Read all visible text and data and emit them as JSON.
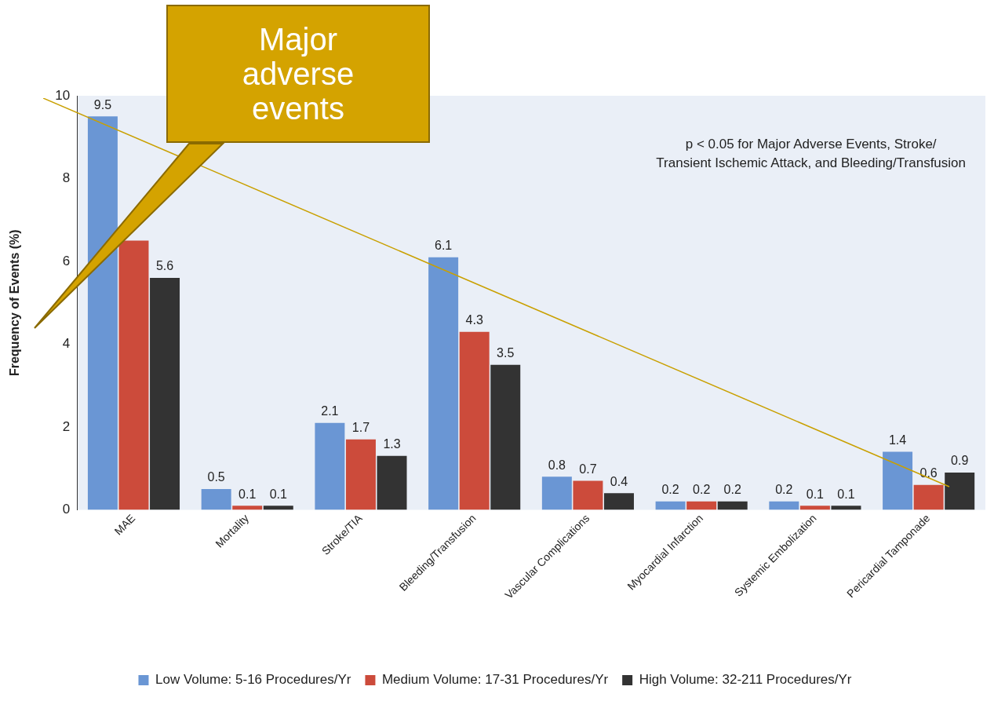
{
  "chart_data": {
    "type": "bar",
    "ylabel": "Frequency of Events (%)",
    "categories": [
      "MAE",
      "Mortality",
      "Stroke/TIA",
      "Bleeding/Transfusion",
      "Vascular Complications",
      "Myocardial Infarction",
      "Systemic Embolization",
      "Pericardial Tamponade"
    ],
    "series": [
      {
        "name": "Low Volume: 5-16 Procedures/Yr",
        "color": "#6a96d4",
        "values": [
          9.5,
          0.5,
          2.1,
          6.1,
          0.8,
          0.2,
          0.2,
          1.4
        ],
        "value_labels": [
          "9.5",
          "0.5",
          "2.1",
          "6.1",
          "0.8",
          "0.2",
          "0.2",
          "1.4"
        ]
      },
      {
        "name": "Medium Volume: 17-31 Procedures/Yr",
        "color": "#cc4b3b",
        "values": [
          6.5,
          0.1,
          1.7,
          4.3,
          0.7,
          0.2,
          0.1,
          0.6
        ],
        "value_labels": [
          null,
          "0.1",
          "1.7",
          "4.3",
          "0.7",
          "0.2",
          "0.1",
          "0.6"
        ]
      },
      {
        "name": "High Volume: 32-211 Procedures/Yr",
        "color": "#333333",
        "values": [
          5.6,
          0.1,
          1.3,
          3.5,
          0.4,
          0.2,
          0.1,
          0.9
        ],
        "value_labels": [
          "5.6",
          "0.1",
          "1.3",
          "3.5",
          "0.4",
          "0.2",
          "0.1",
          "0.9"
        ]
      }
    ],
    "ylim": [
      0,
      10
    ],
    "yticks": [
      0,
      2,
      4,
      6,
      8,
      10
    ],
    "grid": false,
    "legend": "bottom",
    "annotations": [
      "p < 0.05 for Major Adverse Events, Stroke/\nTransient Ischemic Attack, and Bleeding/Transfusion",
      "Major adverse events"
    ]
  }
}
